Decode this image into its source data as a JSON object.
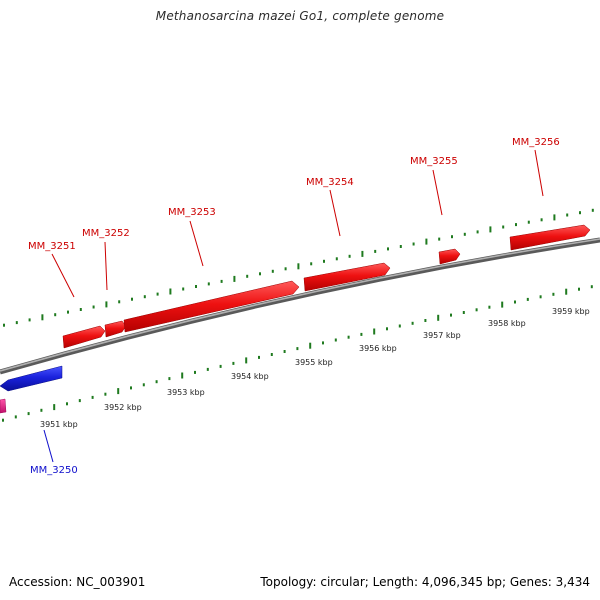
{
  "title": "Methanosarcina mazei Go1, complete genome",
  "footer": {
    "accession": "Accession: NC_003901",
    "summary": "Topology: circular; Length: 4,096,345 bp; Genes: 3,434"
  },
  "colors": {
    "forward_gene": "#ee1111",
    "reverse_gene": "#1a22dd",
    "other_gene": "#e0157a",
    "forward_label": "#cc0000",
    "reverse_label": "#1010cc",
    "tick": "#1f7a1f",
    "backbone": "#8a8a8a"
  },
  "scale_labels": [
    "3951 kbp",
    "3952 kbp",
    "3953 kbp",
    "3954 kbp",
    "3955 kbp",
    "3956 kbp",
    "3957 kbp",
    "3958 kbp",
    "3959 kbp"
  ],
  "genes": [
    {
      "name": "MM_3250",
      "strand": "reverse"
    },
    {
      "name": "MM_3251",
      "strand": "forward"
    },
    {
      "name": "MM_3252",
      "strand": "forward"
    },
    {
      "name": "MM_3253",
      "strand": "forward"
    },
    {
      "name": "MM_3254",
      "strand": "forward"
    },
    {
      "name": "MM_3255",
      "strand": "forward"
    },
    {
      "name": "MM_3256",
      "strand": "forward"
    }
  ]
}
